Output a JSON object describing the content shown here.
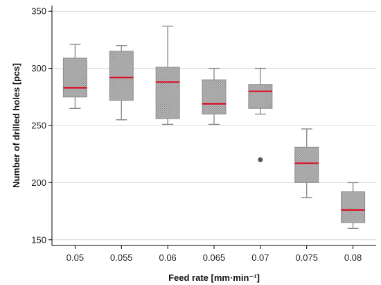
{
  "chart_data": {
    "type": "box",
    "title": "",
    "xlabel": "Feed rate [mm·min⁻¹]",
    "ylabel": "Number of drilled holes [pcs]",
    "ylim": [
      145,
      355
    ],
    "yticks": [
      150,
      200,
      250,
      300,
      350
    ],
    "grid": "horizontal",
    "categories": [
      "0.05",
      "0.055",
      "0.06",
      "0.065",
      "0.07",
      "0.075",
      "0.08"
    ],
    "boxes": [
      {
        "whisker_low": 265,
        "q1": 275,
        "median": 283,
        "q3": 309,
        "whisker_high": 321,
        "outliers": []
      },
      {
        "whisker_low": 255,
        "q1": 272,
        "median": 292,
        "q3": 315,
        "whisker_high": 320,
        "outliers": []
      },
      {
        "whisker_low": 251,
        "q1": 256,
        "median": 288,
        "q3": 301,
        "whisker_high": 337,
        "outliers": []
      },
      {
        "whisker_low": 251,
        "q1": 260,
        "median": 269,
        "q3": 290,
        "whisker_high": 300,
        "outliers": []
      },
      {
        "whisker_low": 260,
        "q1": 265,
        "median": 280,
        "q3": 286,
        "whisker_high": 300,
        "outliers": [
          220
        ]
      },
      {
        "whisker_low": 187,
        "q1": 200,
        "median": 217,
        "q3": 231,
        "whisker_high": 247,
        "outliers": []
      },
      {
        "whisker_low": 160,
        "q1": 165,
        "median": 176,
        "q3": 192,
        "whisker_high": 200,
        "outliers": []
      }
    ],
    "colors": {
      "box_fill": "#a6a6a6",
      "box_stroke": "#8c8c8c",
      "whisker": "#8c8c8c",
      "median": "#e0001b",
      "outlier": "#555555",
      "grid": "#d9d9d9",
      "axis": "#000000"
    }
  }
}
